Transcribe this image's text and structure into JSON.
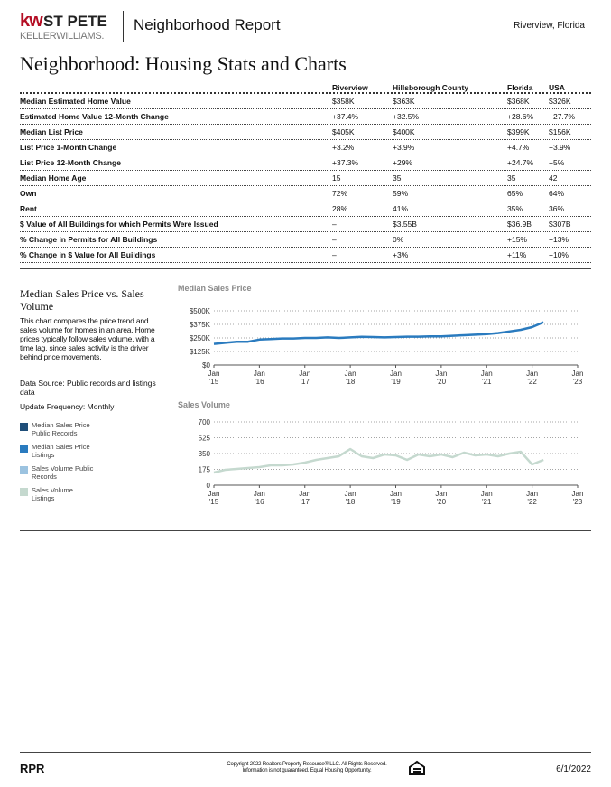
{
  "header": {
    "brand": "kw",
    "office": "ST PETE",
    "company": "KELLERWILLIAMS.",
    "report": "Neighborhood Report",
    "location": "Riverview, Florida"
  },
  "title": "Neighborhood: Housing Stats and Charts",
  "table": {
    "columns": [
      "Riverview",
      "Hillsborough County",
      "Florida",
      "USA"
    ],
    "rows": [
      {
        "label": "Median Estimated Home Value",
        "values": [
          "$358K",
          "$363K",
          "$368K",
          "$326K"
        ]
      },
      {
        "label": "Estimated Home Value 12-Month Change",
        "values": [
          "+37.4%",
          "+32.5%",
          "+28.6%",
          "+27.7%"
        ]
      },
      {
        "label": "Median List Price",
        "values": [
          "$405K",
          "$400K",
          "$399K",
          "$156K"
        ]
      },
      {
        "label": "List Price 1-Month Change",
        "values": [
          "+3.2%",
          "+3.9%",
          "+4.7%",
          "+3.9%"
        ]
      },
      {
        "label": "List Price 12-Month Change",
        "values": [
          "+37.3%",
          "+29%",
          "+24.7%",
          "+5%"
        ]
      },
      {
        "label": "Median Home Age",
        "values": [
          "15",
          "35",
          "35",
          "42"
        ]
      },
      {
        "label": "Own",
        "values": [
          "72%",
          "59%",
          "65%",
          "64%"
        ]
      },
      {
        "label": "Rent",
        "values": [
          "28%",
          "41%",
          "35%",
          "36%"
        ]
      },
      {
        "label": "$ Value of All Buildings for which Permits Were Issued",
        "values": [
          "–",
          "$3.55B",
          "$36.9B",
          "$307B"
        ]
      },
      {
        "label": "% Change in Permits for All Buildings",
        "values": [
          "–",
          "0%",
          "+15%",
          "+13%"
        ]
      },
      {
        "label": "% Change in $ Value for All Buildings",
        "values": [
          "–",
          "+3%",
          "+11%",
          "+10%"
        ]
      }
    ]
  },
  "sidebar": {
    "title": "Median Sales Price vs. Sales Volume",
    "description": "This chart compares the price trend and sales volume for homes in an area. Home prices typically follow sales volume, with a time lag, since sales activity is the driver behind price movements.",
    "source": "Data Source: Public records and listings data",
    "frequency": "Update Frequency: Monthly",
    "legend": [
      {
        "name": "Median Sales Price Public Records",
        "color": "#1f4e79"
      },
      {
        "name": "Median Sales Price Listings",
        "color": "#2a7bbf"
      },
      {
        "name": "Sales Volume Public Records",
        "color": "#9cc3e0"
      },
      {
        "name": "Sales Volume Listings",
        "color": "#c5d9cf"
      }
    ]
  },
  "chart_data": [
    {
      "type": "line",
      "title": "Median Sales Price",
      "x": [
        "2015-01",
        "2015-04",
        "2015-07",
        "2015-10",
        "2016-01",
        "2016-04",
        "2016-07",
        "2016-10",
        "2017-01",
        "2017-04",
        "2017-07",
        "2017-10",
        "2018-01",
        "2018-04",
        "2018-07",
        "2018-10",
        "2019-01",
        "2019-04",
        "2019-07",
        "2019-10",
        "2020-01",
        "2020-04",
        "2020-07",
        "2020-10",
        "2021-01",
        "2021-04",
        "2021-07",
        "2021-10",
        "2022-01",
        "2022-04"
      ],
      "series": [
        {
          "color": "#2a7bbf",
          "values": [
            195000,
            205000,
            215000,
            215000,
            235000,
            240000,
            245000,
            245000,
            250000,
            250000,
            255000,
            250000,
            255000,
            260000,
            258000,
            255000,
            258000,
            262000,
            262000,
            265000,
            265000,
            270000,
            275000,
            280000,
            285000,
            295000,
            310000,
            325000,
            350000,
            395000
          ]
        }
      ],
      "xlim": [
        "2015-01",
        "2023-01"
      ],
      "xticks": [
        {
          "value": "2015-01",
          "label": "Jan '15"
        },
        {
          "value": "2016-01",
          "label": "Jan '16"
        },
        {
          "value": "2017-01",
          "label": "Jan '17"
        },
        {
          "value": "2018-01",
          "label": "Jan '18"
        },
        {
          "value": "2019-01",
          "label": "Jan '19"
        },
        {
          "value": "2020-01",
          "label": "Jan '20"
        },
        {
          "value": "2021-01",
          "label": "Jan '21"
        },
        {
          "value": "2022-01",
          "label": "Jan '22"
        },
        {
          "value": "2023-01",
          "label": "Jan '23"
        }
      ],
      "ylim": [
        0,
        500000
      ],
      "yticks": [
        {
          "value": 0,
          "label": "$0"
        },
        {
          "value": 125000,
          "label": "$125K"
        },
        {
          "value": 250000,
          "label": "$250K"
        },
        {
          "value": 375000,
          "label": "$375K"
        },
        {
          "value": 500000,
          "label": "$500K"
        }
      ],
      "grid": true
    },
    {
      "type": "line",
      "title": "Sales Volume",
      "x": [
        "2015-01",
        "2015-04",
        "2015-07",
        "2015-10",
        "2016-01",
        "2016-04",
        "2016-07",
        "2016-10",
        "2017-01",
        "2017-04",
        "2017-07",
        "2017-10",
        "2018-01",
        "2018-04",
        "2018-07",
        "2018-10",
        "2019-01",
        "2019-04",
        "2019-07",
        "2019-10",
        "2020-01",
        "2020-04",
        "2020-07",
        "2020-10",
        "2021-01",
        "2021-04",
        "2021-07",
        "2021-10",
        "2022-01",
        "2022-04"
      ],
      "series": [
        {
          "color": "#c5d9cf",
          "values": [
            140,
            170,
            180,
            190,
            200,
            220,
            220,
            230,
            250,
            280,
            300,
            320,
            400,
            320,
            300,
            340,
            330,
            280,
            340,
            320,
            340,
            310,
            360,
            330,
            340,
            320,
            350,
            370,
            230,
            280
          ]
        }
      ],
      "xlim": [
        "2015-01",
        "2023-01"
      ],
      "xticks": [
        {
          "value": "2015-01",
          "label": "Jan '15"
        },
        {
          "value": "2016-01",
          "label": "Jan '16"
        },
        {
          "value": "2017-01",
          "label": "Jan '17"
        },
        {
          "value": "2018-01",
          "label": "Jan '18"
        },
        {
          "value": "2019-01",
          "label": "Jan '19"
        },
        {
          "value": "2020-01",
          "label": "Jan '20"
        },
        {
          "value": "2021-01",
          "label": "Jan '21"
        },
        {
          "value": "2022-01",
          "label": "Jan '22"
        },
        {
          "value": "2023-01",
          "label": "Jan '23"
        }
      ],
      "ylim": [
        0,
        700
      ],
      "yticks": [
        0,
        175,
        350,
        525,
        700
      ],
      "grid": true
    }
  ],
  "footer": {
    "logo": "RPR",
    "copyright": "Copyright 2022 Realtors Property Resource® LLC. All Rights Reserved.",
    "disclaimer": "Information is not guaranteed. Equal Housing Opportunity.",
    "date": "6/1/2022"
  }
}
